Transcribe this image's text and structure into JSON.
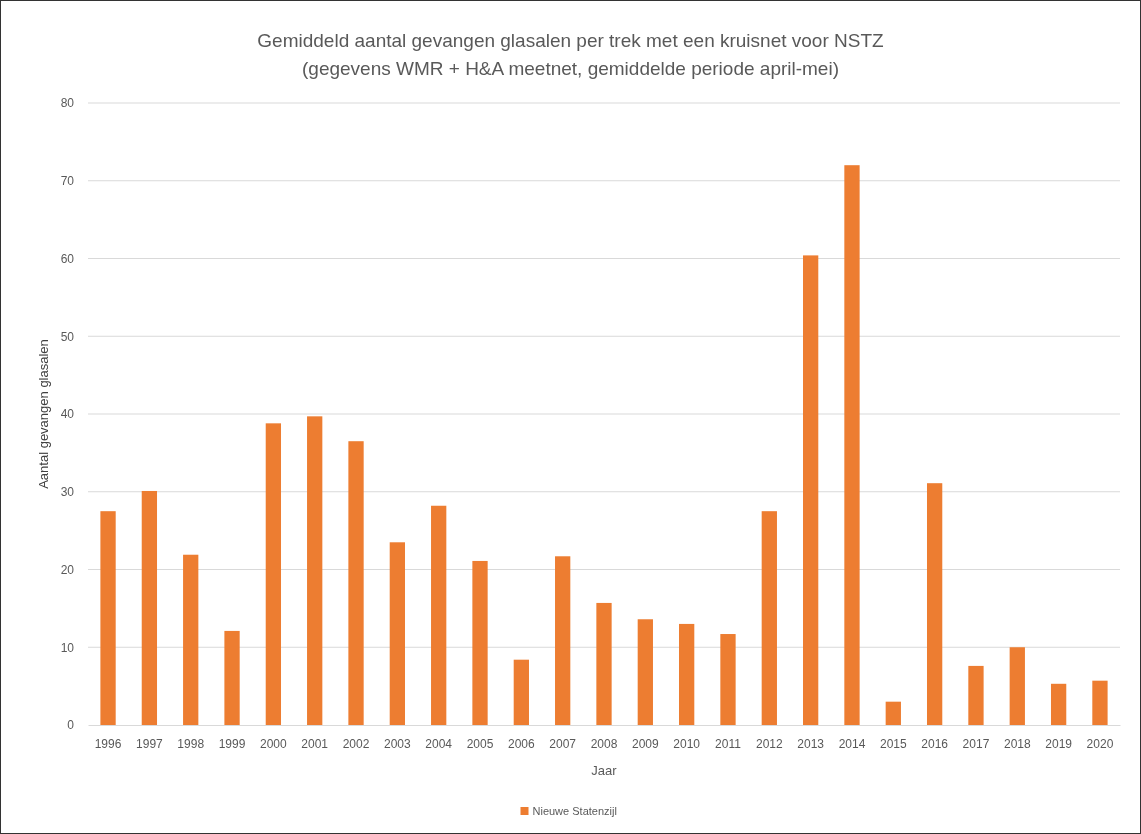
{
  "chart_data": {
    "type": "bar",
    "title": "Gemiddeld aantal gevangen glasalen per trek met een kruisnet voor NSTZ",
    "subtitle": "(gegevens WMR + H&A meetnet, gemiddelde periode april-mei)",
    "xlabel": "Jaar",
    "ylabel": "Aantal gevangen glasalen",
    "categories": [
      "1996",
      "1997",
      "1998",
      "1999",
      "2000",
      "2001",
      "2002",
      "2003",
      "2004",
      "2005",
      "2006",
      "2007",
      "2008",
      "2009",
      "2010",
      "2011",
      "2012",
      "2013",
      "2014",
      "2015",
      "2016",
      "2017",
      "2018",
      "2019",
      "2020"
    ],
    "series": [
      {
        "name": "Nieuwe Statenzijl",
        "color": "#ed7d31",
        "values": [
          27.5,
          30.1,
          21.9,
          12.1,
          38.8,
          39.7,
          36.5,
          23.5,
          28.2,
          21.1,
          8.4,
          21.7,
          15.7,
          13.6,
          13.0,
          11.7,
          27.5,
          60.4,
          72.0,
          3.0,
          31.1,
          7.6,
          10.0,
          5.3,
          5.7
        ]
      }
    ],
    "ylim": [
      0,
      80
    ],
    "yticks": [
      0,
      10,
      20,
      30,
      40,
      50,
      60,
      70,
      80
    ],
    "grid": "y",
    "legend": "bottom"
  }
}
